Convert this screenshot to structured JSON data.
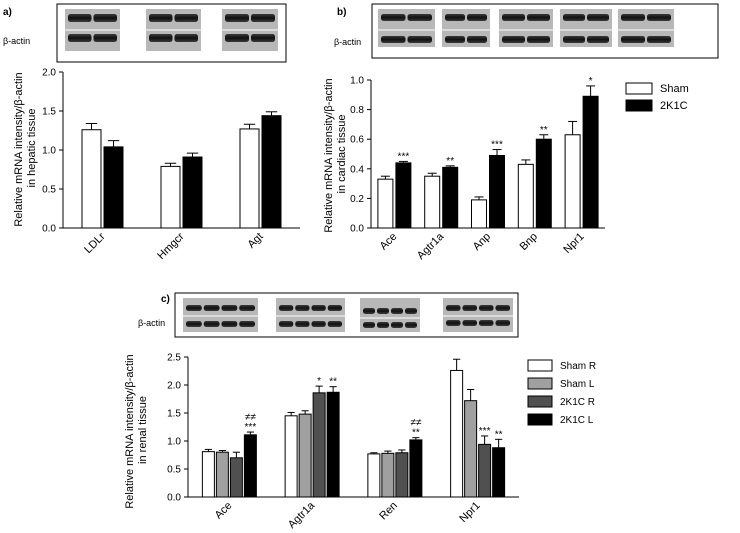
{
  "blot_label": "β-actin",
  "legend_ab": [
    "Sham",
    "2K1C"
  ],
  "legend_c": [
    "Sham R",
    "Sham L",
    "2K1C R",
    "2K1C L"
  ],
  "chart_data": [
    {
      "type": "bar",
      "panel": "a)",
      "categories": [
        "LDLr",
        "Hmgcr",
        "Agt"
      ],
      "series": [
        {
          "name": "Sham",
          "values": [
            1.26,
            0.79,
            1.27
          ],
          "errors": [
            0.08,
            0.04,
            0.06
          ],
          "sig": [
            "",
            "",
            ""
          ]
        },
        {
          "name": "2K1C",
          "values": [
            1.04,
            0.91,
            1.44
          ],
          "errors": [
            0.08,
            0.05,
            0.05
          ],
          "sig": [
            "",
            "",
            ""
          ]
        }
      ],
      "ylabel_lines": [
        "Relative mRNA intensity/β-actin",
        "in hepatic tissue"
      ],
      "ylim": [
        0,
        2.0
      ],
      "yticks": [
        "0.0",
        "0.5",
        "1.0",
        "1.5",
        "2.0"
      ]
    },
    {
      "type": "bar",
      "panel": "b)",
      "categories": [
        "Ace",
        "Agtr1a",
        "Anp",
        "Bnp",
        "Npr1"
      ],
      "series": [
        {
          "name": "Sham",
          "values": [
            0.33,
            0.35,
            0.19,
            0.43,
            0.63
          ],
          "errors": [
            0.02,
            0.02,
            0.02,
            0.03,
            0.09
          ],
          "sig": [
            "",
            "",
            "",
            "",
            ""
          ]
        },
        {
          "name": "2K1C",
          "values": [
            0.44,
            0.41,
            0.49,
            0.6,
            0.89
          ],
          "errors": [
            0.01,
            0.01,
            0.04,
            0.03,
            0.07
          ],
          "sig": [
            "***",
            "**",
            "***",
            "**",
            "*"
          ]
        }
      ],
      "ylabel_lines": [
        "Relative mRNA intensity/β-actin",
        "in cardiac tissue"
      ],
      "ylim": [
        0,
        1.0
      ],
      "yticks": [
        "0.0",
        "0.2",
        "0.4",
        "0.6",
        "0.8",
        "1.0"
      ]
    },
    {
      "type": "bar",
      "panel": "c)",
      "categories": [
        "Ace",
        "Agtr1a",
        "Ren",
        "Npr1"
      ],
      "series": [
        {
          "name": "Sham R",
          "values": [
            0.81,
            1.45,
            0.77,
            2.26
          ],
          "errors": [
            0.04,
            0.06,
            0.02,
            0.2
          ],
          "sig": [
            "",
            "",
            "",
            ""
          ]
        },
        {
          "name": "Sham L",
          "values": [
            0.8,
            1.48,
            0.78,
            1.72
          ],
          "errors": [
            0.03,
            0.06,
            0.04,
            0.2
          ],
          "sig": [
            "",
            "",
            "",
            ""
          ]
        },
        {
          "name": "2K1C R",
          "values": [
            0.7,
            1.86,
            0.79,
            0.94
          ],
          "errors": [
            0.1,
            0.12,
            0.05,
            0.15
          ],
          "sig": [
            "",
            "*",
            "",
            "***"
          ]
        },
        {
          "name": "2K1C L",
          "values": [
            1.11,
            1.87,
            1.02,
            0.88
          ],
          "errors": [
            0.05,
            0.1,
            0.04,
            0.15
          ],
          "sig": [
            "***",
            "**",
            "**",
            "**"
          ]
        }
      ],
      "extra_marks": [
        "≠≠",
        "",
        "≠≠",
        ""
      ],
      "ylabel_lines": [
        "Relative mRNA intensity/β-actin",
        "in renal tissue"
      ],
      "ylim": [
        0,
        2.5
      ],
      "yticks": [
        "0.0",
        "0.5",
        "1.0",
        "1.5",
        "2.0",
        "2.5"
      ]
    }
  ]
}
